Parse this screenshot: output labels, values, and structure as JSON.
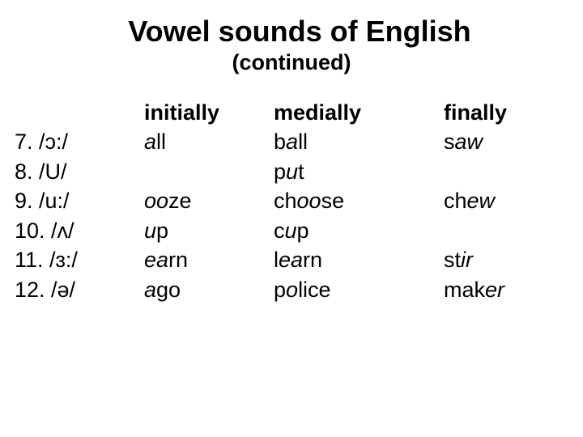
{
  "title": "Vowel sounds of English",
  "subtitle": "(continued)",
  "headers": {
    "initially": "initially",
    "medially": "medially",
    "finally": "finally"
  },
  "rows": [
    {
      "label": "7. /ɔ:/",
      "initially_pre": "",
      "initially_it": "a",
      "initially_post": "ll",
      "medially_pre": "b",
      "medially_it": "a",
      "medially_post": "ll",
      "finally_pre": "s",
      "finally_it": "aw",
      "finally_post": ""
    },
    {
      "label": "8.  /U/",
      "initially_pre": "",
      "initially_it": "",
      "initially_post": "",
      "medially_pre": "p",
      "medially_it": "u",
      "medially_post": "t",
      "finally_pre": "",
      "finally_it": "",
      "finally_post": ""
    },
    {
      "label": "9.  /u:/",
      "initially_pre": "",
      "initially_it": "oo",
      "initially_post": "ze",
      "medially_pre": "ch",
      "medially_it": "oo",
      "medially_post": "se",
      "finally_pre": "ch",
      "finally_it": "ew",
      "finally_post": ""
    },
    {
      "label": "10. /ʌ/",
      "initially_pre": "",
      "initially_it": "u",
      "initially_post": "p",
      "medially_pre": "c",
      "medially_it": "u",
      "medially_post": "p",
      "finally_pre": "",
      "finally_it": "",
      "finally_post": ""
    },
    {
      "label": "11. /ɜ:/",
      "initially_pre": "",
      "initially_it": "ea",
      "initially_post": "rn",
      "medially_pre": "l",
      "medially_it": "ea",
      "medially_post": "rn",
      "finally_pre": "st",
      "finally_it": "ir",
      "finally_post": ""
    },
    {
      "label": "12. /ə/",
      "initially_pre": "",
      "initially_it": "a",
      "initially_post": "go",
      "medially_pre": "p",
      "medially_it": "o",
      "medially_post": "lice",
      "finally_pre": "mak",
      "finally_it": "er",
      "finally_post": ""
    }
  ],
  "style": {
    "background_color": "#ffffff",
    "text_color": "#000000",
    "title_fontsize": 36,
    "subtitle_fontsize": 27,
    "body_fontsize": 27,
    "font_family": "Arial"
  }
}
